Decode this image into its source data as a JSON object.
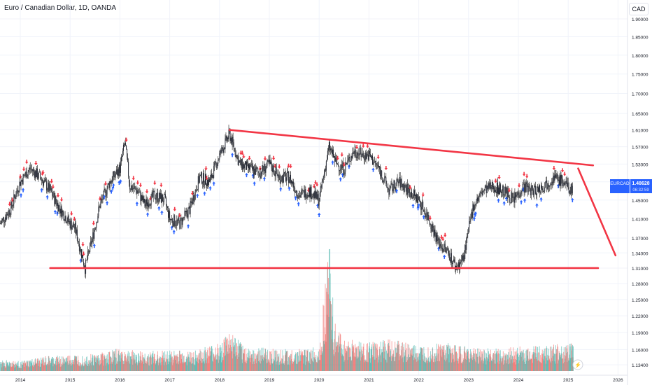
{
  "header": {
    "title": "Euro / Canadian Dollar, 1D, OANDA",
    "currency": "CAD"
  },
  "price_tag": {
    "symbol": "EURCAD",
    "price": "1.48628",
    "countdown": "06:32:59"
  },
  "colors": {
    "up": "#26a69a",
    "down": "#ef5350",
    "buy_arrow": "#2962ff",
    "sell_arrow": "#f23645",
    "trendline": "#f23645",
    "grid": "#f0f3fa",
    "axis_text": "#131722"
  },
  "chart_data": {
    "type": "line",
    "title": "Euro / Canadian Dollar, 1D, OANDA",
    "xlabel": "",
    "ylabel": "",
    "x_ticks": [
      "2014",
      "2015",
      "2016",
      "2017",
      "2018",
      "2019",
      "2020",
      "2021",
      "2022",
      "2023",
      "2024",
      "2025",
      "2026"
    ],
    "y_ticks": [
      "1.90000",
      "1.85000",
      "1.80000",
      "1.75000",
      "1.70000",
      "1.65000",
      "1.61000",
      "1.57000",
      "1.53000",
      "1.49000",
      "1.45000",
      "1.41000",
      "1.37000",
      "1.34000",
      "1.31000",
      "1.28000",
      "1.25000",
      "1.22000",
      "1.19000",
      "1.16000",
      "1.13400"
    ],
    "scale": "log",
    "ylim": [
      1.12,
      1.93
    ],
    "grid": true,
    "series": [
      {
        "x": [
          2013.6,
          2013.8,
          2014.0,
          2014.2,
          2014.4,
          2014.6,
          2014.8,
          2015.0,
          2015.1,
          2015.2,
          2015.3,
          2015.45,
          2015.6,
          2015.8,
          2016.0,
          2016.1,
          2016.2,
          2016.35,
          2016.5,
          2016.7,
          2016.9,
          2017.0,
          2017.2,
          2017.4,
          2017.6,
          2017.8,
          2018.0,
          2018.2,
          2018.4,
          2018.6,
          2018.8,
          2019.0,
          2019.2,
          2019.4,
          2019.6,
          2019.8,
          2020.0,
          2020.2,
          2020.35,
          2020.5,
          2020.7,
          2020.9,
          2021.0,
          2021.2,
          2021.4,
          2021.6,
          2021.8,
          2022.0,
          2022.2,
          2022.4,
          2022.6,
          2022.75,
          2022.9,
          2023.1,
          2023.3,
          2023.5,
          2023.7,
          2023.9,
          2024.1,
          2024.3,
          2024.5,
          2024.7,
          2024.9,
          2025.05,
          2025.1
        ],
        "close": [
          1.4,
          1.43,
          1.49,
          1.52,
          1.5,
          1.47,
          1.43,
          1.4,
          1.39,
          1.35,
          1.31,
          1.37,
          1.44,
          1.49,
          1.52,
          1.58,
          1.48,
          1.47,
          1.44,
          1.46,
          1.45,
          1.41,
          1.4,
          1.43,
          1.5,
          1.49,
          1.55,
          1.6,
          1.53,
          1.52,
          1.51,
          1.53,
          1.5,
          1.5,
          1.46,
          1.47,
          1.45,
          1.57,
          1.53,
          1.52,
          1.56,
          1.55,
          1.55,
          1.52,
          1.47,
          1.49,
          1.47,
          1.45,
          1.41,
          1.36,
          1.34,
          1.31,
          1.33,
          1.44,
          1.47,
          1.48,
          1.47,
          1.45,
          1.48,
          1.47,
          1.48,
          1.5,
          1.49,
          1.47,
          1.486
        ]
      }
    ],
    "trendlines": [
      {
        "x": [
          2018.2,
          2025.5
        ],
        "y": [
          1.61,
          1.527
        ]
      },
      {
        "x": [
          2014.6,
          2025.6
        ],
        "y": [
          1.31,
          1.31
        ]
      },
      {
        "x": [
          2025.2,
          2025.95
        ],
        "y": [
          1.52,
          1.335
        ]
      }
    ],
    "volume": {
      "x": [
        2013.6,
        2014.0,
        2014.5,
        2015.0,
        2015.5,
        2016.0,
        2016.5,
        2017.0,
        2017.5,
        2018.0,
        2018.2,
        2018.5,
        2019.0,
        2019.5,
        2020.0,
        2020.2,
        2020.3,
        2020.5,
        2021.0,
        2021.5,
        2022.0,
        2022.5,
        2023.0,
        2023.5,
        2024.0,
        2024.5,
        2025.0
      ],
      "y": [
        15,
        12,
        18,
        20,
        22,
        28,
        24,
        26,
        25,
        35,
        50,
        30,
        28,
        26,
        30,
        170,
        60,
        40,
        35,
        40,
        30,
        35,
        30,
        28,
        30,
        32,
        34
      ]
    }
  }
}
